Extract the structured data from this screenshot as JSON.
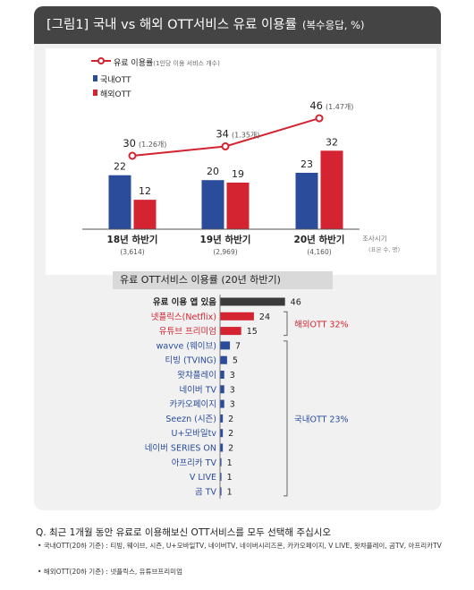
{
  "title": "[그림1] 국내 vs 해외 OTT서비스 유료 이용률",
  "title_sub": "(복수응답, %)",
  "colors": {
    "domestic": "#2a4c9b",
    "overseas": "#d42431",
    "total": "#3a3a3a",
    "line": "#d42431"
  },
  "chart_data": [
    {
      "type": "bar",
      "legend": [
        {
          "label": "유료 이용률",
          "sublabel": "(1인당 이용 서비스 개수)"
        },
        {
          "label": "국내OTT"
        },
        {
          "label": "해외OTT"
        }
      ],
      "categories": [
        {
          "label": "18년 하반기",
          "sample": "(3,614)"
        },
        {
          "label": "19년 하반기",
          "sample": "(2,969)"
        },
        {
          "label": "20년 하반기",
          "sample": "(4,160)"
        }
      ],
      "series": [
        {
          "name": "국내OTT",
          "values": [
            22,
            20,
            23
          ]
        },
        {
          "name": "해외OTT",
          "values": [
            12,
            19,
            32
          ]
        }
      ],
      "line": {
        "name": "유료 이용률",
        "values": [
          30,
          34,
          46
        ],
        "sub_labels": [
          "(1.26개)",
          "(1.35개)",
          "(1.47개)"
        ]
      },
      "axis_note": "조사시기",
      "axis_note_sub": "(표본 수, 명)"
    },
    {
      "type": "bar",
      "title": "유료 OTT서비스 이용률 (20년 하반기)",
      "categories": [
        "유료 이용 앱 있음",
        "넷플릭스(Netflix)",
        "유튜브 프리미엄",
        "wavve (웨이브)",
        "티빙 (TVING)",
        "왓챠플레이",
        "네이버 TV",
        "카카오페이지",
        "Seezn (시즌)",
        "U+모바일tv",
        "네이버 SERIES ON",
        "아프리카 TV",
        "V LIVE",
        "곰 TV"
      ],
      "values": [
        46,
        24,
        15,
        7,
        5,
        3,
        3,
        3,
        2,
        2,
        2,
        1,
        1,
        1
      ],
      "groups": [
        {
          "label": "해외OTT 32%",
          "start": 1,
          "end": 2
        },
        {
          "label": "국내OTT 23%",
          "start": 3,
          "end": 13
        }
      ]
    }
  ],
  "footnote_question": "Q. 최근 1개월 동안 유료로 이용해보신 OTT서비스를 모두 선택해 주십시오",
  "footnote_domestic": "• 국내OTT(20하 기준) : 티빙, 웨이브, 시즌, U+모바일TV, 네이버TV, 네이버시리즈온, 카카오페이지, V LIVE, 왓챠플레이, 곰TV, 아프리카TV",
  "footnote_overseas": "• 해외OTT(20하 기준) : 넷플릭스, 유튜브프리미엄"
}
